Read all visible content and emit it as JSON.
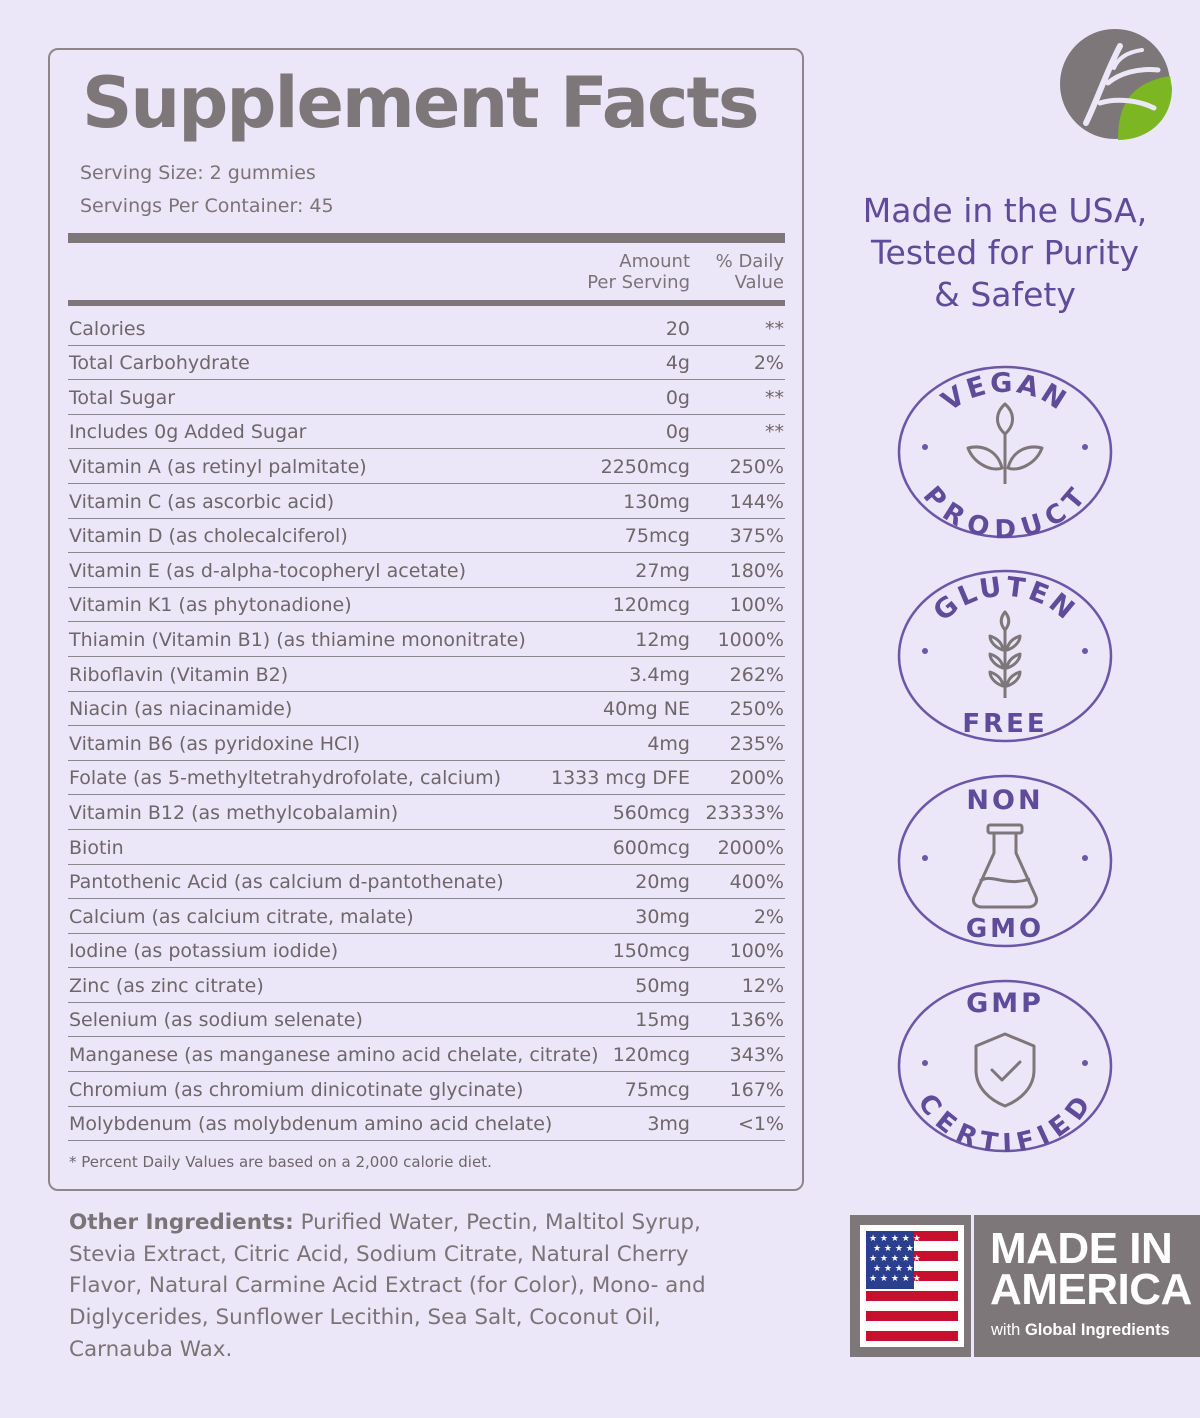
{
  "panel": {
    "title": "Supplement Facts",
    "serving_size": "Serving Size: 2 gummies",
    "servings_per_container": "Servings Per Container: 45",
    "col_amount_line1": "Amount",
    "col_amount_line2": "Per Serving",
    "col_dv_line1": "% Daily",
    "col_dv_line2": "Value",
    "rows": [
      {
        "name": "Calories",
        "amount": "20",
        "dv": "**"
      },
      {
        "name": "Total Carbohydrate",
        "amount": "4g",
        "dv": "2%"
      },
      {
        "name": "Total Sugar",
        "amount": "0g",
        "dv": "**"
      },
      {
        "name": "Includes 0g Added Sugar",
        "amount": "0g",
        "dv": "**"
      },
      {
        "name": "Vitamin A (as retinyl palmitate)",
        "amount": "2250mcg",
        "dv": "250%"
      },
      {
        "name": "Vitamin C (as ascorbic acid)",
        "amount": "130mg",
        "dv": "144%"
      },
      {
        "name": "Vitamin D (as cholecalciferol)",
        "amount": "75mcg",
        "dv": "375%"
      },
      {
        "name": "Vitamin E (as d-alpha-tocopheryl acetate)",
        "amount": "27mg",
        "dv": "180%"
      },
      {
        "name": "Vitamin K1 (as phytonadione)",
        "amount": "120mcg",
        "dv": "100%"
      },
      {
        "name": "Thiamin (Vitamin B1) (as thiamine mononitrate)",
        "amount": "12mg",
        "dv": "1000%"
      },
      {
        "name": "Riboflavin (Vitamin B2)",
        "amount": "3.4mg",
        "dv": "262%"
      },
      {
        "name": "Niacin (as niacinamide)",
        "amount": "40mg NE",
        "dv": "250%"
      },
      {
        "name": "Vitamin B6 (as pyridoxine HCl)",
        "amount": "4mg",
        "dv": "235%"
      },
      {
        "name": "Folate (as 5-methyltetrahydrofolate, calcium)",
        "amount": "1333 mcg DFE",
        "dv": "200%"
      },
      {
        "name": "Vitamin B12 (as methylcobalamin)",
        "amount": "560mcg",
        "dv": "23333%"
      },
      {
        "name": "Biotin",
        "amount": "600mcg",
        "dv": "2000%"
      },
      {
        "name": "Pantothenic Acid (as calcium d-pantothenate)",
        "amount": "20mg",
        "dv": "400%"
      },
      {
        "name": "Calcium (as calcium citrate, malate)",
        "amount": "30mg",
        "dv": "2%"
      },
      {
        "name": "Iodine (as potassium iodide)",
        "amount": "150mcg",
        "dv": "100%"
      },
      {
        "name": "Zinc (as zinc citrate)",
        "amount": "50mg",
        "dv": "12%"
      },
      {
        "name": "Selenium (as sodium selenate)",
        "amount": "15mg",
        "dv": "136%"
      },
      {
        "name": "Manganese (as manganese amino acid chelate, citrate)",
        "amount": "120mcg",
        "dv": "343%"
      },
      {
        "name": "Chromium (as chromium dinicotinate glycinate)",
        "amount": "75mcg",
        "dv": "167%"
      },
      {
        "name": "Molybdenum (as molybdenum amino acid chelate)",
        "amount": "3mg",
        "dv": "<1%"
      }
    ],
    "footnote": "* Percent Daily Values are based on a 2,000 calorie diet."
  },
  "ingredients": {
    "label": "Other Ingredients:",
    "text": " Purified Water, Pectin, Maltitol Syrup, Stevia Extract, Citric Acid, Sodium Citrate, Natural Cherry Flavor, Natural Carmine Acid Extract (for Color), Mono- and Diglycerides, Sunflower Lecithin, Sea Salt, Coconut Oil, Carnauba Wax."
  },
  "tagline": {
    "line1": "Made in the USA,",
    "line2": "Tested for Purity",
    "line3": "& Safety"
  },
  "badges": [
    {
      "top": "VEGAN",
      "bottom": "PRODUCT",
      "icon": "leaf-icon"
    },
    {
      "top": "GLUTEN",
      "bottom": "FREE",
      "icon": "wheat-icon"
    },
    {
      "top": "NON",
      "bottom": "GMO",
      "icon": "flask-icon"
    },
    {
      "top": "GMP",
      "bottom": "CERTIFIED",
      "icon": "shield-check-icon"
    }
  ],
  "made_in_america": {
    "line1": "MADE IN",
    "line2": "AMERICA",
    "sub_prefix": "with ",
    "sub_bold": "Global Ingredients",
    "icon": "us-flag-icon"
  },
  "colors": {
    "background": "#ebe6f8",
    "text_gray": "#7d7779",
    "accent_purple": "#5e4b9a",
    "logo_green": "#7cb623"
  }
}
